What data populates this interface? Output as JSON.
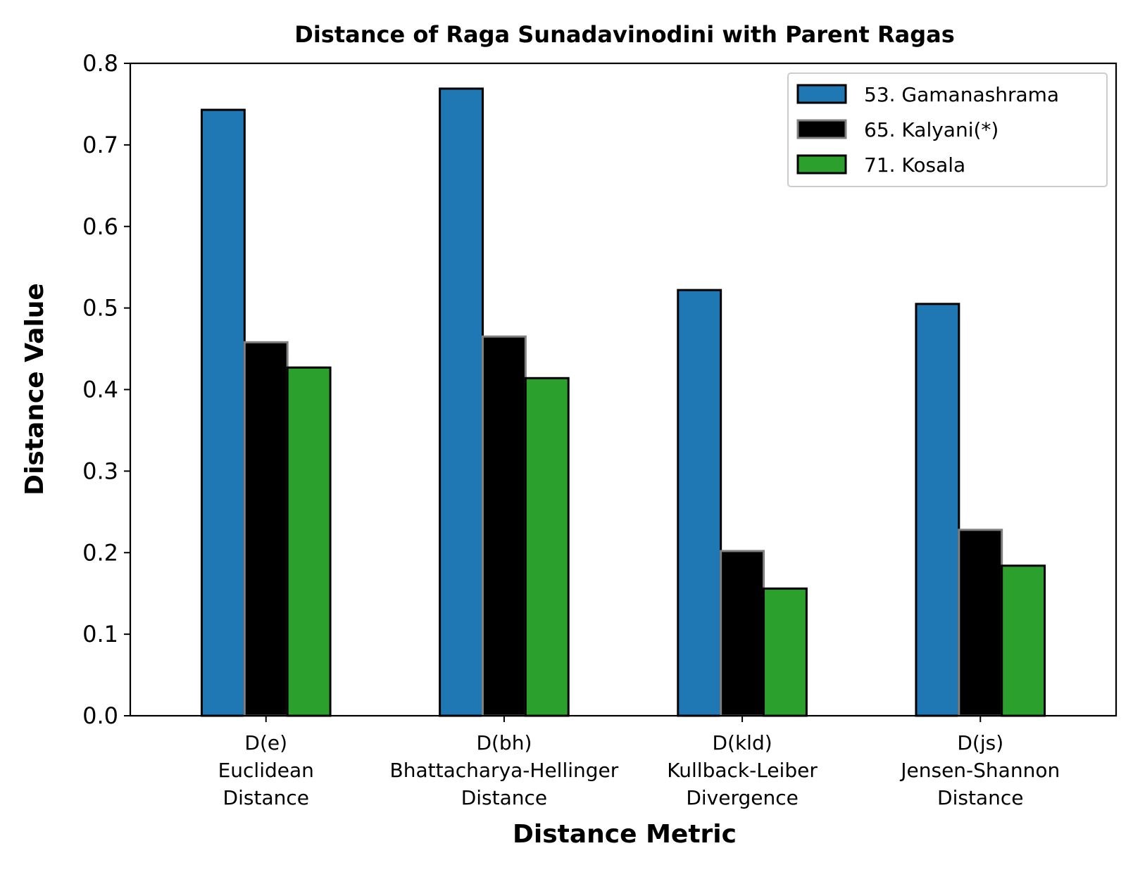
{
  "chart_data": {
    "type": "bar",
    "title": "Distance of Raga Sunadavinodini with Parent Ragas",
    "xlabel": "Distance Metric",
    "ylabel": "Distance Value",
    "ylim": [
      0,
      0.8
    ],
    "yticks": [
      "0.0",
      "0.1",
      "0.2",
      "0.3",
      "0.4",
      "0.5",
      "0.6",
      "0.7",
      "0.8"
    ],
    "grid": false,
    "legend_position": "top-right",
    "categories": [
      [
        "D(e)",
        "Euclidean",
        "Distance"
      ],
      [
        "D(bh)",
        "Bhattacharya-Hellinger",
        "Distance"
      ],
      [
        "D(kld)",
        "Kullback-Leiber",
        "Divergence"
      ],
      [
        "D(js)",
        "Jensen-Shannon",
        "Distance"
      ]
    ],
    "series": [
      {
        "name": "53. Gamanashrama",
        "color": "#1f77b4",
        "edge_color": "#000000",
        "values": [
          0.743,
          0.769,
          0.522,
          0.505
        ]
      },
      {
        "name": "65. Kalyani(*)",
        "color": "#000000",
        "edge_color": "#808080",
        "values": [
          0.458,
          0.465,
          0.202,
          0.228
        ]
      },
      {
        "name": "71. Kosala",
        "color": "#2ca02c",
        "edge_color": "#000000",
        "values": [
          0.427,
          0.414,
          0.156,
          0.184
        ]
      }
    ]
  }
}
